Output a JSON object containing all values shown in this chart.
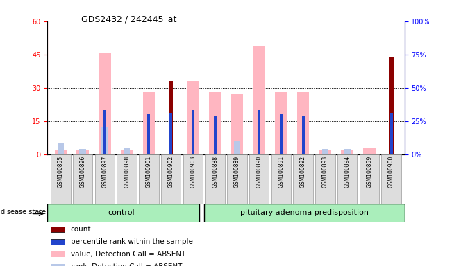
{
  "title": "GDS2432 / 242445_at",
  "samples": [
    "GSM100895",
    "GSM100896",
    "GSM100897",
    "GSM100898",
    "GSM100901",
    "GSM100902",
    "GSM100903",
    "GSM100888",
    "GSM100889",
    "GSM100890",
    "GSM100891",
    "GSM100892",
    "GSM100893",
    "GSM100894",
    "GSM100899",
    "GSM100900"
  ],
  "count_values": [
    0,
    0,
    0,
    0,
    0,
    33,
    0,
    0,
    0,
    0,
    0,
    0,
    0,
    0,
    0,
    44
  ],
  "percentile_values": [
    0,
    0,
    33,
    0,
    30,
    31,
    33,
    29,
    0,
    33,
    30,
    29,
    0,
    0,
    0,
    31
  ],
  "absent_value": [
    2,
    2,
    46,
    2,
    28,
    0,
    33,
    28,
    27,
    49,
    28,
    28,
    2,
    2,
    3,
    0
  ],
  "absent_rank": [
    8,
    4,
    20,
    5,
    0,
    0,
    0,
    0,
    10,
    0,
    0,
    0,
    4,
    4,
    0,
    0
  ],
  "group_boundary": 7,
  "n_control": 7,
  "n_adenoma": 9,
  "ylim_left": [
    0,
    60
  ],
  "ylim_right": [
    0,
    100
  ],
  "left_ticks": [
    0,
    15,
    30,
    45,
    60
  ],
  "right_ticks": [
    0,
    25,
    50,
    75,
    100
  ],
  "left_tick_labels": [
    "0",
    "15",
    "30",
    "45",
    "60"
  ],
  "right_tick_labels": [
    "0%",
    "25%",
    "50%",
    "75%",
    "100%"
  ],
  "count_color": "#8B0000",
  "percentile_color": "#2244CC",
  "absent_value_color": "#FFB6C1",
  "absent_rank_color": "#B8C8E8",
  "control_color": "#AAEEBB",
  "adenoma_color": "#AAEEBB",
  "group_label_control": "control",
  "group_label_adenoma": "pituitary adenoma predisposition",
  "disease_state_label": "disease state",
  "legend_items": [
    {
      "label": "count",
      "color": "#8B0000"
    },
    {
      "label": "percentile rank within the sample",
      "color": "#2244CC"
    },
    {
      "label": "value, Detection Call = ABSENT",
      "color": "#FFB6C1"
    },
    {
      "label": "rank, Detection Call = ABSENT",
      "color": "#B8C8E8"
    }
  ],
  "background_color": "#FFFFFF",
  "xticklabel_bg": "#DDDDDD"
}
